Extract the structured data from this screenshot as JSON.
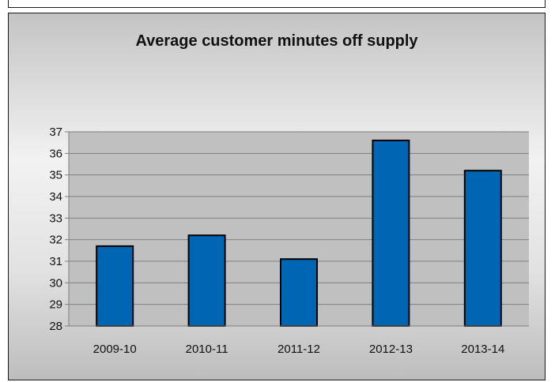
{
  "chart_data": {
    "type": "bar",
    "title": "Average customer minutes off supply",
    "xlabel": "",
    "ylabel": "",
    "categories": [
      "2009-10",
      "2010-11",
      "2011-12",
      "2012-13",
      "2013-14"
    ],
    "values": [
      31.7,
      32.2,
      31.1,
      36.6,
      35.2
    ],
    "ylim": [
      28,
      37
    ],
    "yticks": [
      28,
      29,
      30,
      31,
      32,
      33,
      34,
      35,
      36,
      37
    ],
    "grid": true,
    "legend": "none",
    "colors": {
      "bar_fill": "#0066b3",
      "bar_stroke": "#000000",
      "plot_bg": "#c0c0c0",
      "grid": "#7f7f7f"
    }
  }
}
